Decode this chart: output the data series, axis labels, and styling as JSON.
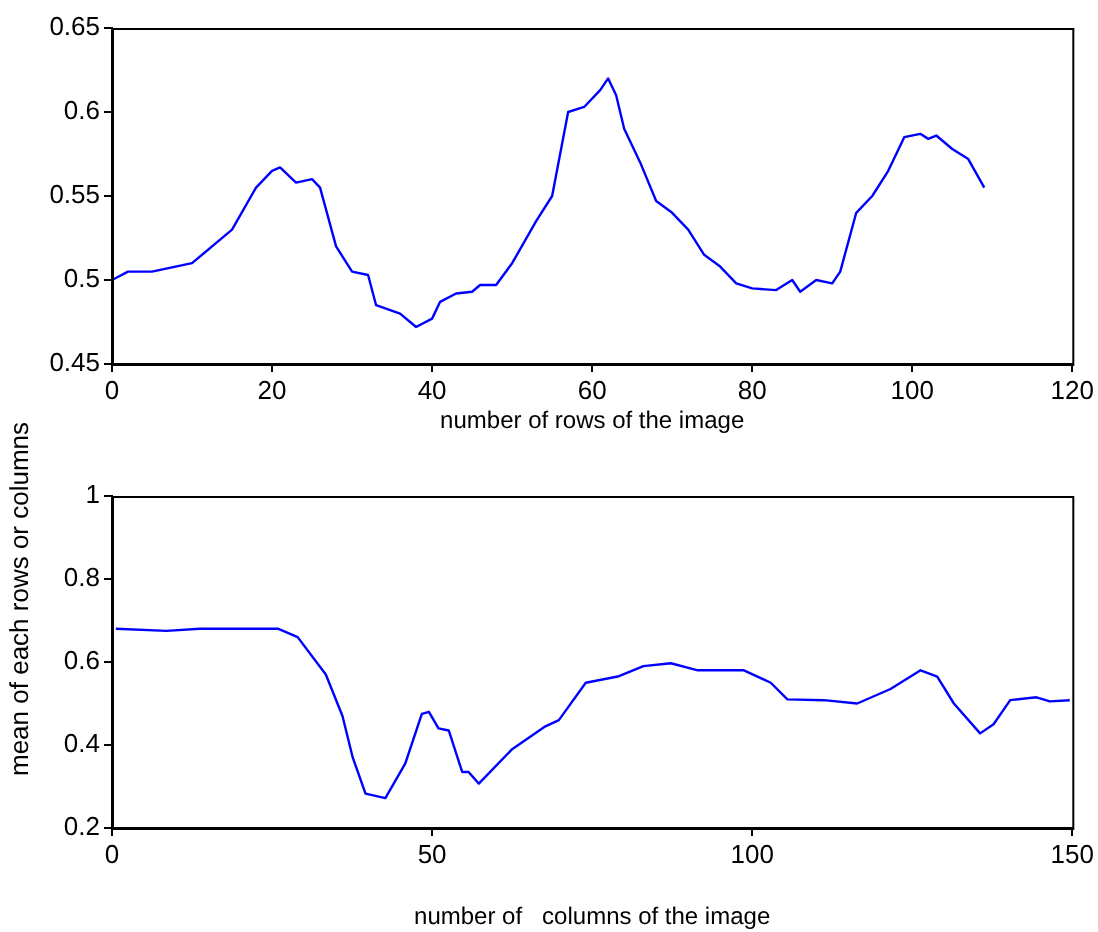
{
  "chart_data": [
    {
      "type": "line",
      "xlabel": "number of rows of the image",
      "xlim": [
        0,
        120
      ],
      "xticks": [
        0,
        20,
        40,
        60,
        80,
        100,
        120
      ],
      "ylim": [
        0.45,
        0.65
      ],
      "yticks": [
        0.45,
        0.5,
        0.55,
        0.6,
        0.65
      ],
      "grid": false,
      "legend": false,
      "marker": "none",
      "line_style": "solid",
      "series": [
        {
          "color": "#0000ff",
          "x": [
            0,
            2,
            5,
            10,
            15,
            18,
            20,
            21,
            23,
            25,
            26,
            28,
            30,
            32,
            33,
            36,
            38,
            40,
            41,
            43,
            45,
            46,
            48,
            50,
            53,
            55,
            57,
            59,
            61,
            62,
            63,
            64,
            66,
            68,
            70,
            72,
            74,
            76,
            78,
            80,
            83,
            85,
            86,
            88,
            90,
            91,
            93,
            95,
            97,
            99,
            101,
            102,
            103,
            105,
            107,
            109
          ],
          "values": [
            0.5,
            0.505,
            0.505,
            0.51,
            0.53,
            0.555,
            0.565,
            0.567,
            0.558,
            0.56,
            0.555,
            0.52,
            0.505,
            0.503,
            0.485,
            0.48,
            0.472,
            0.477,
            0.487,
            0.492,
            0.493,
            0.497,
            0.497,
            0.51,
            0.535,
            0.55,
            0.6,
            0.603,
            0.613,
            0.62,
            0.61,
            0.59,
            0.57,
            0.547,
            0.54,
            0.53,
            0.515,
            0.508,
            0.498,
            0.495,
            0.494,
            0.5,
            0.493,
            0.5,
            0.498,
            0.505,
            0.54,
            0.55,
            0.565,
            0.585,
            0.587,
            0.584,
            0.586,
            0.578,
            0.572,
            0.555
          ]
        }
      ]
    },
    {
      "type": "line",
      "xlabel": "number of   columns of the image",
      "ylabel": "mean of each rows or columns",
      "xlim": [
        0,
        150
      ],
      "xticks": [
        0,
        50,
        100,
        150
      ],
      "ylim": [
        0.2,
        1
      ],
      "yticks": [
        0.2,
        0.4,
        0.6,
        0.8,
        1
      ],
      "grid": false,
      "legend": false,
      "marker": "none",
      "line_style": "solid",
      "series": [
        {
          "color": "#0000ff",
          "x": [
            0.6,
            8.5,
            13.7,
            26,
            29,
            33.4,
            36,
            37.6,
            39.6,
            42.7,
            45.8,
            48.4,
            49.5,
            51,
            52.6,
            54.7,
            55.7,
            57.3,
            62.5,
            67.7,
            69.8,
            74,
            79,
            83,
            87.3,
            91.5,
            98.7,
            102.9,
            105.5,
            111.2,
            116.4,
            121.6,
            126.3,
            128.9,
            131.5,
            135.6,
            137.7,
            140.3,
            144.4,
            146.5,
            149.6
          ],
          "values": [
            0.68,
            0.675,
            0.68,
            0.68,
            0.66,
            0.57,
            0.47,
            0.37,
            0.283,
            0.272,
            0.355,
            0.475,
            0.48,
            0.44,
            0.435,
            0.335,
            0.335,
            0.307,
            0.39,
            0.445,
            0.46,
            0.55,
            0.565,
            0.59,
            0.597,
            0.58,
            0.58,
            0.55,
            0.51,
            0.508,
            0.5,
            0.535,
            0.58,
            0.565,
            0.5,
            0.428,
            0.45,
            0.508,
            0.515,
            0.505,
            0.508
          ]
        }
      ]
    }
  ]
}
